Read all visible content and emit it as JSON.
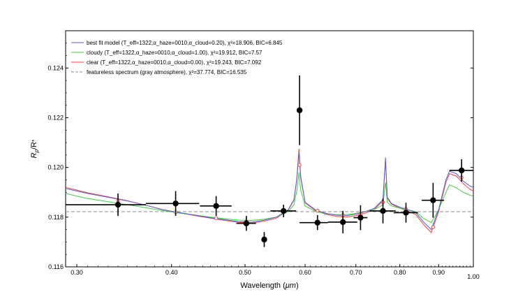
{
  "chart_data": {
    "type": "scatter",
    "xlabel_main": "Wavelength (",
    "xlabel_unit": "μm",
    "xlabel_close": ")",
    "ylabel_r1": "R",
    "ylabel_sub1": "p",
    "ylabel_r2": "/R",
    "ylabel_star": "*",
    "xscale": "log",
    "xlim": [
      0.29,
      1.0
    ],
    "ylim": [
      0.116,
      0.1255
    ],
    "x_ticks": [
      0.3,
      0.4,
      0.5,
      0.6,
      0.7,
      0.8,
      0.9,
      1.0
    ],
    "x_tick_labels": [
      "0.30",
      "0.40",
      "0.50",
      "0.60",
      "0.70",
      "0.80",
      "0.90",
      "1.00"
    ],
    "y_ticks": [
      0.116,
      0.118,
      0.12,
      0.122,
      0.124
    ],
    "y_tick_labels": [
      "0.116",
      "0.118",
      "0.120",
      "0.122",
      "0.124"
    ],
    "legend_position": "top-left",
    "legend": [
      {
        "color": "#5b5bd6",
        "style": "solid",
        "text": "best fit model (T_eff=1322,α_haze=0010,α_cloud=0.20), χ²=18.906, BIC=6.845"
      },
      {
        "color": "#3fcf3f",
        "style": "solid",
        "text": "cloudy (T_eff=1322,α_haze=0010,α_cloud=1.00), χ²=19.912, BIC=7.57"
      },
      {
        "color": "#e84545",
        "style": "solid",
        "text": "clear (T_eff=1322,α_haze=0010,α_cloud=0.00), χ²=19.243, BIC=7.092"
      },
      {
        "color": "#888888",
        "style": "dashed",
        "text": "featureless spectrum (gray atmosphere), χ²=37.774, BIC=16.535"
      }
    ],
    "featureless_level": 0.11822,
    "observations": [
      {
        "x": 0.34,
        "y": 0.1185,
        "xerr_lo": 0.05,
        "xerr_hi": 0.03,
        "yerr": 0.00045
      },
      {
        "x": 0.405,
        "y": 0.11855,
        "xerr_lo": 0.035,
        "xerr_hi": 0.03,
        "yerr": 0.0005
      },
      {
        "x": 0.458,
        "y": 0.11845,
        "xerr_lo": 0.022,
        "xerr_hi": 0.022,
        "yerr": 0.0004
      },
      {
        "x": 0.502,
        "y": 0.11775,
        "xerr_lo": 0.015,
        "xerr_hi": 0.015,
        "yerr": 0.0003
      },
      {
        "x": 0.53,
        "y": 0.1171,
        "xerr_lo": 0.0,
        "xerr_hi": 0.0,
        "yerr": 0.0003
      },
      {
        "x": 0.562,
        "y": 0.11825,
        "xerr_lo": 0.022,
        "xerr_hi": 0.022,
        "yerr": 0.00025
      },
      {
        "x": 0.59,
        "y": 0.1223,
        "xerr_lo": 0.0,
        "xerr_hi": 0.0,
        "yerr": 0.0014
      },
      {
        "x": 0.623,
        "y": 0.11778,
        "xerr_lo": 0.033,
        "xerr_hi": 0.02,
        "yerr": 0.0003
      },
      {
        "x": 0.673,
        "y": 0.1178,
        "xerr_lo": 0.03,
        "xerr_hi": 0.03,
        "yerr": 0.00045
      },
      {
        "x": 0.71,
        "y": 0.11798,
        "xerr_lo": 0.015,
        "xerr_hi": 0.015,
        "yerr": 0.0005
      },
      {
        "x": 0.76,
        "y": 0.11825,
        "xerr_lo": 0.03,
        "xerr_hi": 0.03,
        "yerr": 0.0005
      },
      {
        "x": 0.815,
        "y": 0.11818,
        "xerr_lo": 0.03,
        "xerr_hi": 0.03,
        "yerr": 0.0004
      },
      {
        "x": 0.885,
        "y": 0.11868,
        "xerr_lo": 0.03,
        "xerr_hi": 0.03,
        "yerr": 0.0007
      },
      {
        "x": 0.965,
        "y": 0.11988,
        "xerr_lo": 0.035,
        "xerr_hi": 0.035,
        "yerr": 0.00045
      }
    ],
    "series": [
      {
        "name": "best fit model",
        "color": "#5b5bd6",
        "x": [
          0.29,
          0.31,
          0.33,
          0.35,
          0.37,
          0.39,
          0.41,
          0.43,
          0.45,
          0.47,
          0.49,
          0.51,
          0.53,
          0.55,
          0.57,
          0.58,
          0.585,
          0.589,
          0.592,
          0.6,
          0.62,
          0.64,
          0.66,
          0.68,
          0.7,
          0.72,
          0.74,
          0.76,
          0.766,
          0.77,
          0.78,
          0.8,
          0.82,
          0.84,
          0.86,
          0.88,
          0.9,
          0.92,
          0.93,
          0.95,
          0.97,
          0.99,
          1.0
        ],
        "y": [
          0.11915,
          0.11895,
          0.1188,
          0.11865,
          0.11848,
          0.1183,
          0.11818,
          0.11808,
          0.11798,
          0.1179,
          0.11782,
          0.1178,
          0.11788,
          0.118,
          0.1183,
          0.1187,
          0.1195,
          0.1206,
          0.1196,
          0.1186,
          0.11828,
          0.11815,
          0.11808,
          0.11806,
          0.11812,
          0.11822,
          0.11835,
          0.1187,
          0.1204,
          0.1188,
          0.11855,
          0.1184,
          0.1183,
          0.11818,
          0.1178,
          0.1175,
          0.1183,
          0.1195,
          0.11985,
          0.11975,
          0.11945,
          0.11925,
          0.1192
        ]
      },
      {
        "name": "cloudy",
        "color": "#3fcf3f",
        "x": [
          0.29,
          0.31,
          0.33,
          0.35,
          0.37,
          0.39,
          0.41,
          0.43,
          0.45,
          0.47,
          0.49,
          0.51,
          0.53,
          0.55,
          0.57,
          0.58,
          0.585,
          0.589,
          0.592,
          0.6,
          0.62,
          0.64,
          0.66,
          0.68,
          0.7,
          0.72,
          0.74,
          0.76,
          0.766,
          0.77,
          0.78,
          0.8,
          0.82,
          0.84,
          0.86,
          0.88,
          0.9,
          0.92,
          0.93,
          0.95,
          0.97,
          0.99,
          1.0
        ],
        "y": [
          0.11895,
          0.11875,
          0.11862,
          0.1185,
          0.11838,
          0.11826,
          0.11816,
          0.11808,
          0.118,
          0.11794,
          0.11788,
          0.11787,
          0.11792,
          0.118,
          0.11822,
          0.1185,
          0.11905,
          0.1198,
          0.1191,
          0.11845,
          0.11822,
          0.11814,
          0.1181,
          0.1181,
          0.11815,
          0.11822,
          0.1183,
          0.1185,
          0.1194,
          0.1186,
          0.11845,
          0.11836,
          0.1183,
          0.11822,
          0.11795,
          0.11778,
          0.1183,
          0.119,
          0.1193,
          0.11918,
          0.119,
          0.11888,
          0.11885
        ]
      },
      {
        "name": "clear",
        "color": "#e84545",
        "x": [
          0.29,
          0.31,
          0.33,
          0.35,
          0.37,
          0.39,
          0.41,
          0.43,
          0.45,
          0.47,
          0.49,
          0.51,
          0.53,
          0.55,
          0.57,
          0.58,
          0.585,
          0.589,
          0.592,
          0.6,
          0.62,
          0.64,
          0.66,
          0.68,
          0.7,
          0.72,
          0.74,
          0.76,
          0.766,
          0.77,
          0.78,
          0.8,
          0.82,
          0.84,
          0.86,
          0.88,
          0.9,
          0.92,
          0.93,
          0.95,
          0.97,
          0.99,
          1.0
        ],
        "y": [
          0.1192,
          0.11898,
          0.11882,
          0.11866,
          0.11848,
          0.1183,
          0.11817,
          0.11806,
          0.11796,
          0.11787,
          0.11779,
          0.11776,
          0.11784,
          0.11796,
          0.11828,
          0.11868,
          0.11955,
          0.12075,
          0.11965,
          0.11858,
          0.11825,
          0.11811,
          0.11803,
          0.118,
          0.11806,
          0.11816,
          0.1183,
          0.11866,
          0.1203,
          0.11876,
          0.11852,
          0.11836,
          0.11825,
          0.1181,
          0.1177,
          0.11738,
          0.11822,
          0.1194,
          0.11975,
          0.11965,
          0.11935,
          0.11912,
          0.11905
        ]
      }
    ],
    "model_markers": [
      {
        "x": 0.34,
        "y": 0.11866
      },
      {
        "x": 0.405,
        "y": 0.1182
      },
      {
        "x": 0.458,
        "y": 0.11796
      },
      {
        "x": 0.502,
        "y": 0.11783
      },
      {
        "x": 0.562,
        "y": 0.11828
      },
      {
        "x": 0.59,
        "y": 0.1201
      },
      {
        "x": 0.623,
        "y": 0.11826
      },
      {
        "x": 0.673,
        "y": 0.11808
      },
      {
        "x": 0.71,
        "y": 0.11812
      },
      {
        "x": 0.76,
        "y": 0.1186
      },
      {
        "x": 0.815,
        "y": 0.11832
      },
      {
        "x": 0.885,
        "y": 0.1176
      },
      {
        "x": 0.965,
        "y": 0.1196
      }
    ]
  }
}
